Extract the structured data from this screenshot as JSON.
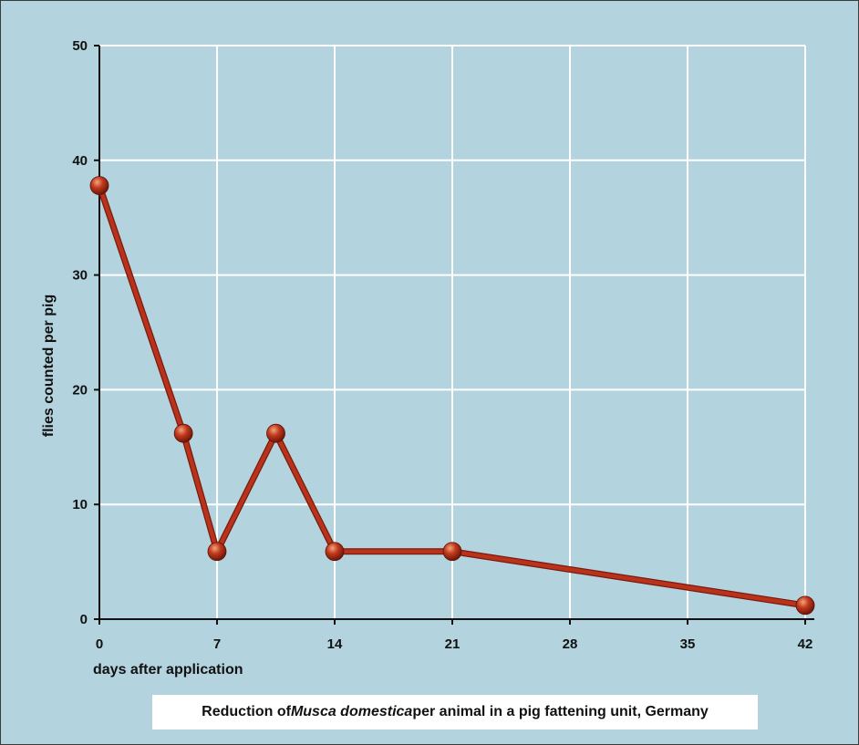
{
  "chart_data": {
    "type": "line",
    "title": "",
    "xlabel": "days after application",
    "ylabel": "flies counted per pig",
    "xlim": [
      0,
      42
    ],
    "ylim": [
      0,
      50
    ],
    "x_ticks": [
      0,
      7,
      14,
      21,
      28,
      35,
      42
    ],
    "y_ticks": [
      0,
      10,
      20,
      30,
      40,
      50
    ],
    "grid": true,
    "series": [
      {
        "x": [
          0,
          5,
          7,
          10.5,
          14,
          21,
          42
        ],
        "y": [
          37.8,
          16.2,
          5.9,
          16.2,
          5.9,
          5.9,
          1.2
        ]
      }
    ],
    "caption": {
      "prefix": "Reduction of ",
      "italic": "Musca domestica",
      "suffix": " per animal in a pig fattening unit, Germany"
    }
  },
  "colors": {
    "background": "#b3d3de",
    "grid": "#ffffff",
    "line": "#b9331c",
    "marker": "#c23a1e",
    "marker_highlight": "#f2a57e",
    "axis": "#111111"
  }
}
